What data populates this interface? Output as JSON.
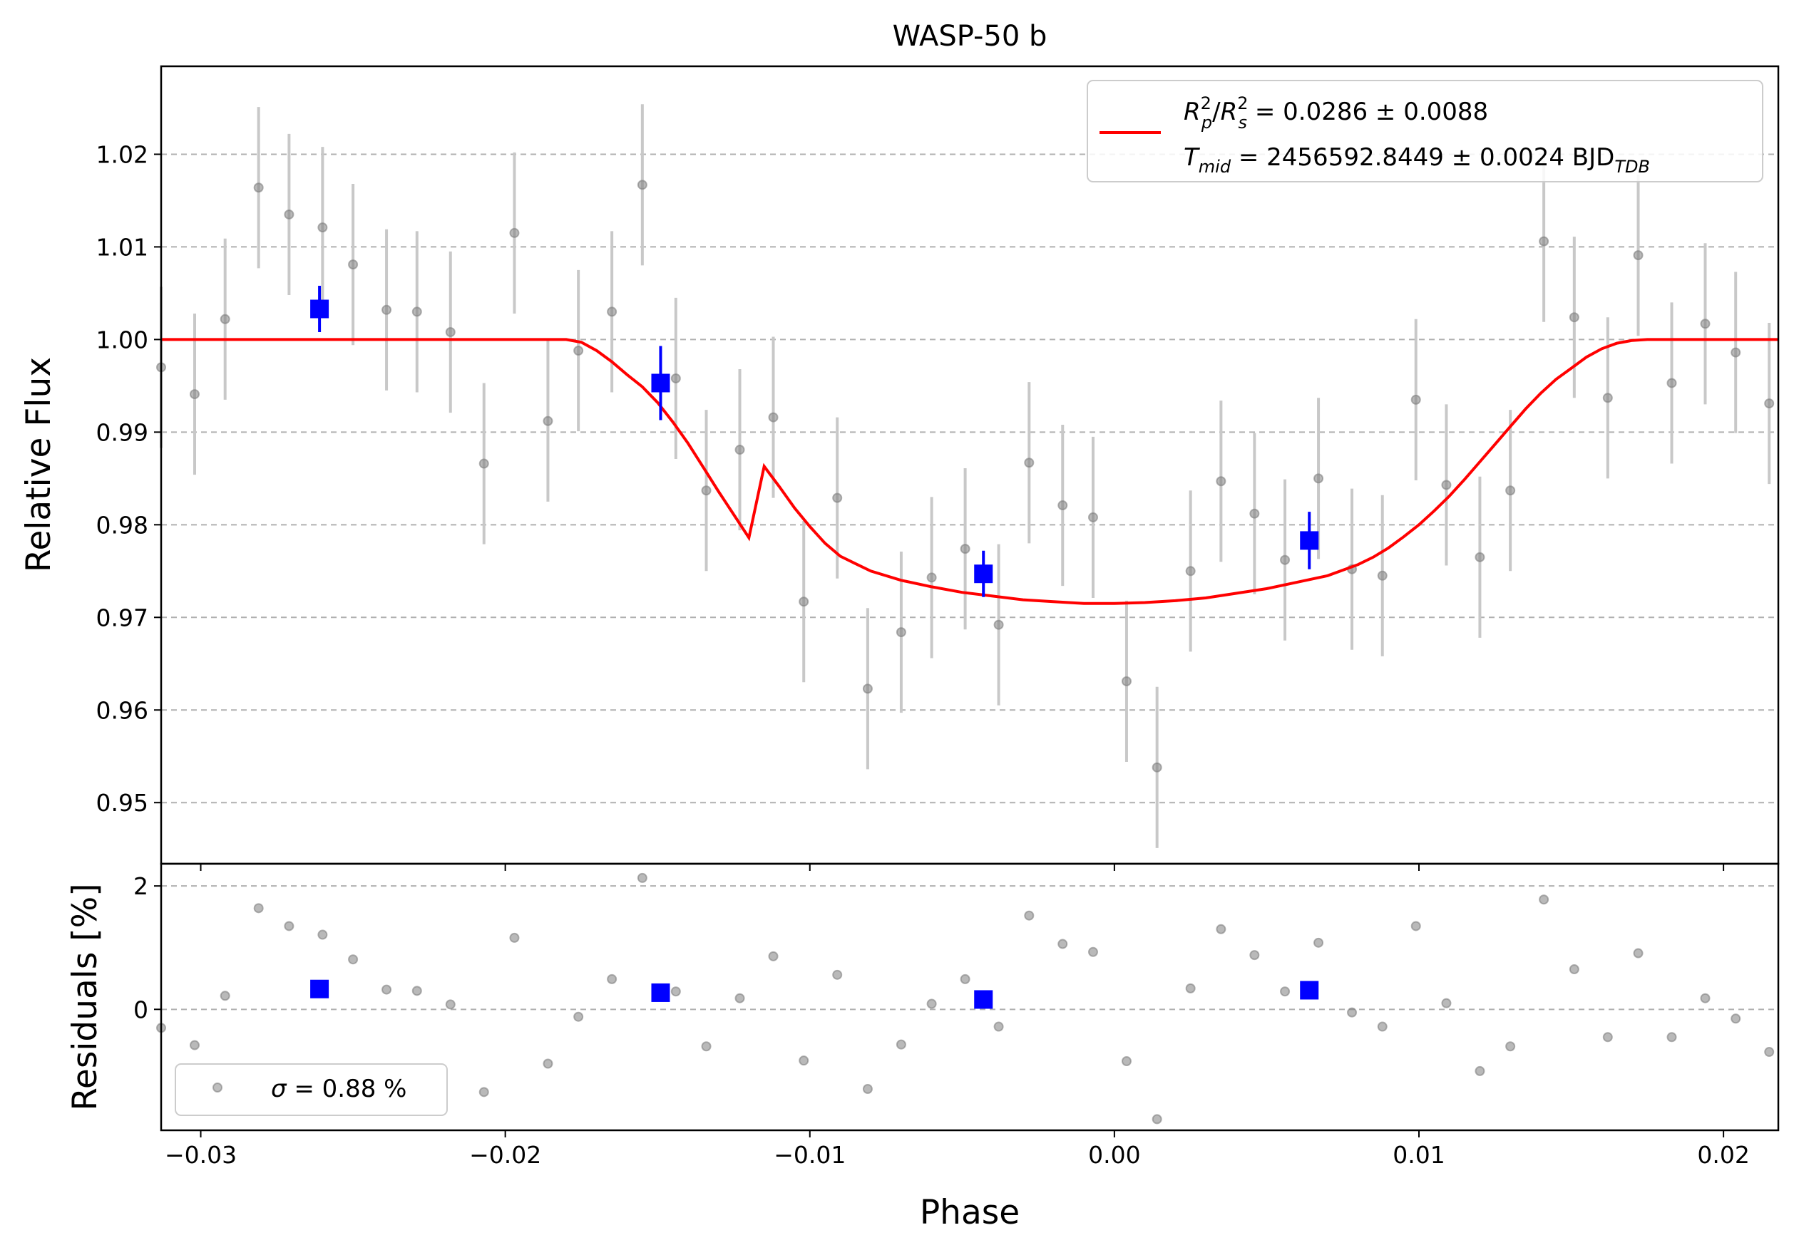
{
  "chart_data": {
    "type": "scatter",
    "title": "WASP-50 b",
    "xlabel": "Phase",
    "xlim": [
      -0.0313,
      0.0218
    ],
    "xticks": [
      -0.03,
      -0.02,
      -0.01,
      0.0,
      0.01,
      0.02
    ],
    "xtick_labels": [
      "−0.03",
      "−0.02",
      "−0.01",
      "0.00",
      "0.01",
      "0.02"
    ],
    "colors": {
      "data": "#808080",
      "error": "#c8c8c8",
      "binned": "#0000ff",
      "model": "#ff0000",
      "grid": "#b0b0b0"
    },
    "top_panel": {
      "ylabel": "Relative Flux",
      "ylim": [
        0.9434,
        1.0295
      ],
      "yticks": [
        0.95,
        0.96,
        0.97,
        0.98,
        0.99,
        1.0,
        1.01,
        1.02
      ],
      "ytick_labels": [
        "0.95",
        "0.96",
        "0.97",
        "0.98",
        "0.99",
        "1.00",
        "1.01",
        "1.02"
      ],
      "grid": "horizontal dashed",
      "legend": {
        "position": "top-right",
        "line1": {
          "a": "R",
          "a_sup": "2",
          "a_sub": "p",
          "slash": "/",
          "b": "R",
          "b_sup": "2",
          "b_sub": "s",
          "value": " = 0.0286 ± 0.0088"
        },
        "line2": {
          "a": "T",
          "a_sub": "mid",
          "value": " = 2456592.8449 ± 0.0024 BJD",
          "unit_sub": "TDB"
        }
      },
      "series": [
        {
          "role": "unbinned data with error bars",
          "x": [
            -0.0313,
            -0.0302,
            -0.0292,
            -0.0281,
            -0.0271,
            -0.026,
            -0.025,
            -0.0239,
            -0.0229,
            -0.0218,
            -0.0207,
            -0.0197,
            -0.0186,
            -0.0176,
            -0.0165,
            -0.0155,
            -0.0144,
            -0.0134,
            -0.0123,
            -0.0112,
            -0.0102,
            -0.0091,
            -0.0081,
            -0.007,
            -0.006,
            -0.0049,
            -0.0038,
            -0.0028,
            -0.0017,
            -0.0007,
            0.0004,
            0.0014,
            0.0025,
            0.0035,
            0.0046,
            0.0056,
            0.0067,
            0.0078,
            0.0088,
            0.0099,
            0.0109,
            0.012,
            0.013,
            0.0141,
            0.0151,
            0.0162,
            0.0172,
            0.0183,
            0.0194,
            0.0204,
            0.0215
          ],
          "y": [
            0.997,
            0.9941,
            1.0022,
            1.0164,
            1.0135,
            1.0121,
            1.0081,
            1.0032,
            1.003,
            1.0008,
            0.9866,
            1.0115,
            0.9912,
            0.9988,
            1.003,
            1.0167,
            0.9958,
            0.9837,
            0.9881,
            0.9916,
            0.9717,
            0.9829,
            0.9623,
            0.9684,
            0.9743,
            0.9774,
            0.9692,
            0.9867,
            0.9821,
            0.9808,
            0.9631,
            0.9538,
            0.975,
            0.9847,
            0.9812,
            0.9762,
            0.985,
            0.9752,
            0.9745,
            0.9935,
            0.9843,
            0.9765,
            0.9837,
            1.0106,
            1.0024,
            0.9937,
            1.0091,
            0.9953,
            1.0017,
            0.9986,
            0.9931
          ],
          "err": 0.0087
        },
        {
          "role": "binned data",
          "x": [
            -0.0261,
            -0.0149,
            -0.0043,
            0.0064
          ],
          "y": [
            1.0033,
            0.9953,
            0.9747,
            0.9783
          ],
          "err": [
            0.0025,
            0.004,
            0.0025,
            0.0031
          ]
        },
        {
          "role": "transit model",
          "name": "model",
          "x": [
            -0.0313,
            -0.018,
            -0.0175,
            -0.017,
            -0.0165,
            -0.016,
            -0.0155,
            -0.015,
            -0.0145,
            -0.014,
            -0.0135,
            -0.013,
            -0.0125,
            -0.012,
            -0.0115,
            -0.011,
            -0.0105,
            -0.01,
            -0.0095,
            -0.009,
            -0.0085,
            -0.008,
            -0.007,
            -0.006,
            -0.005,
            -0.004,
            -0.003,
            -0.002,
            -0.001,
            0.0,
            0.001,
            0.002,
            0.003,
            0.004,
            0.005,
            0.006,
            0.007,
            0.008,
            0.0085,
            0.009,
            0.0095,
            0.01,
            0.0105,
            0.011,
            0.0115,
            0.012,
            0.0125,
            0.013,
            0.0135,
            0.014,
            0.0145,
            0.015,
            0.0155,
            0.016,
            0.0165,
            0.017,
            0.0175,
            0.018,
            0.0218
          ],
          "y": [
            1.0,
            1.0,
            0.9997,
            0.9988,
            0.9976,
            0.9962,
            0.9949,
            0.9932,
            0.9911,
            0.9888,
            0.9862,
            0.9836,
            0.9811,
            0.9786,
            0.9863,
            0.9841,
            0.9818,
            0.9798,
            0.978,
            0.9766,
            0.9758,
            0.975,
            0.974,
            0.9733,
            0.9727,
            0.9723,
            0.9719,
            0.9717,
            0.9715,
            0.9715,
            0.9716,
            0.9718,
            0.9721,
            0.9726,
            0.9731,
            0.9738,
            0.9745,
            0.9757,
            0.9765,
            0.9775,
            0.9787,
            0.98,
            0.9815,
            0.9831,
            0.9849,
            0.9868,
            0.9887,
            0.9906,
            0.9925,
            0.9942,
            0.9957,
            0.9969,
            0.9981,
            0.999,
            0.9996,
            0.9999,
            1.0,
            1.0,
            1.0
          ]
        }
      ]
    },
    "bottom_panel": {
      "ylabel": "Residuals [%]",
      "ylim": [
        -1.96,
        2.36
      ],
      "yticks": [
        0,
        2
      ],
      "ytick_labels": [
        "0",
        "2"
      ],
      "grid": "horizontal dashed",
      "legend": {
        "position": "bottom-left",
        "sigma_symbol": "σ",
        "label": " = 0.88 %"
      },
      "series": [
        {
          "role": "unbinned residuals",
          "x": [
            -0.0313,
            -0.0302,
            -0.0292,
            -0.0281,
            -0.0271,
            -0.026,
            -0.025,
            -0.0239,
            -0.0229,
            -0.0218,
            -0.0207,
            -0.0197,
            -0.0186,
            -0.0176,
            -0.0165,
            -0.0155,
            -0.0144,
            -0.0134,
            -0.0123,
            -0.0112,
            -0.0102,
            -0.0091,
            -0.0081,
            -0.007,
            -0.006,
            -0.0049,
            -0.0038,
            -0.0028,
            -0.0017,
            -0.0007,
            0.0004,
            0.0014,
            0.0025,
            0.0035,
            0.0046,
            0.0056,
            0.0067,
            0.0078,
            0.0088,
            0.0099,
            0.0109,
            0.012,
            0.013,
            0.0141,
            0.0151,
            0.0162,
            0.0172,
            0.0183,
            0.0194,
            0.0204,
            0.0215
          ],
          "y": [
            -0.3,
            -0.58,
            0.22,
            1.64,
            1.35,
            1.21,
            0.81,
            0.32,
            0.3,
            0.08,
            -1.34,
            1.16,
            -0.88,
            -0.12,
            0.49,
            2.13,
            0.29,
            -0.6,
            0.18,
            0.86,
            -0.83,
            0.56,
            -1.29,
            -0.57,
            0.09,
            0.49,
            -0.28,
            1.52,
            1.06,
            0.93,
            -0.84,
            -1.78,
            0.34,
            1.3,
            0.88,
            0.29,
            1.08,
            -0.05,
            -0.28,
            1.35,
            0.1,
            -1.0,
            -0.6,
            1.78,
            0.65,
            -0.45,
            0.91,
            -0.45,
            0.18,
            -0.15,
            -0.69
          ]
        },
        {
          "role": "binned residuals",
          "x": [
            -0.0261,
            -0.0149,
            -0.0043,
            0.0064
          ],
          "y": [
            0.33,
            0.27,
            0.16,
            0.31
          ]
        }
      ]
    }
  }
}
